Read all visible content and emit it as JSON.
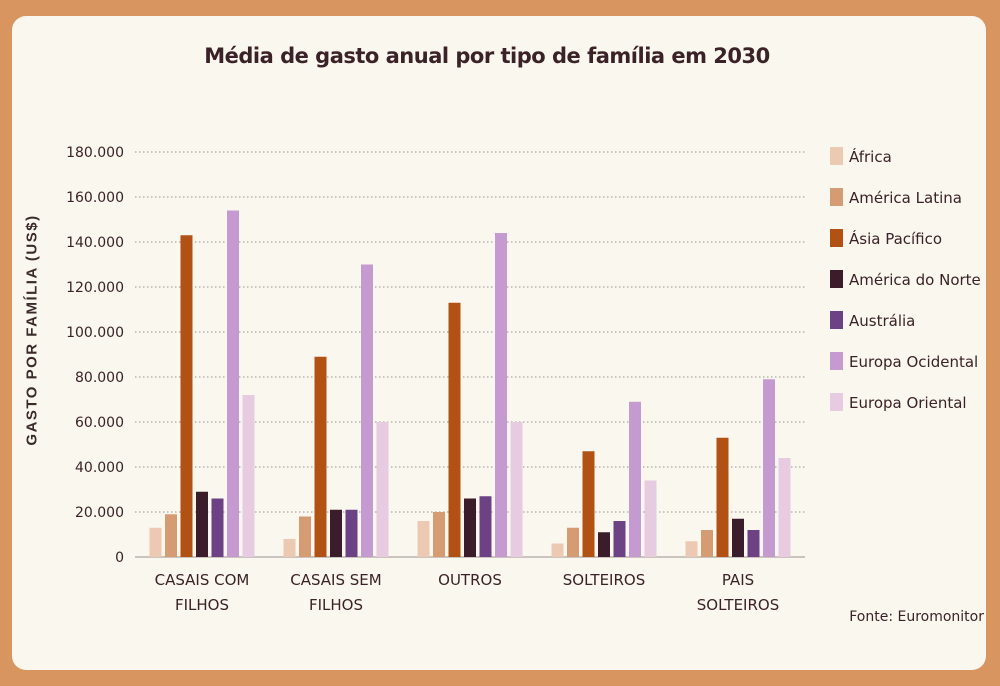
{
  "chart_data": {
    "type": "bar",
    "title": "Média de gasto anual por tipo de família em 2030",
    "ylabel": "GASTO POR FAMÍLIA (US$)",
    "xlabel": "",
    "ylim": [
      0,
      180000
    ],
    "yticks": [
      0,
      20000,
      40000,
      60000,
      80000,
      100000,
      120000,
      140000,
      160000,
      180000
    ],
    "ytick_labels": [
      "0",
      "20.000",
      "40.000",
      "60.000",
      "80.000",
      "100.000",
      "120.000",
      "140.000",
      "160.000",
      "180.000"
    ],
    "grid": true,
    "legend_position": "right",
    "categories": [
      [
        "CASAIS COM",
        "FILHOS"
      ],
      [
        "CASAIS SEM",
        "FILHOS"
      ],
      [
        "OUTROS"
      ],
      [
        "SOLTEIROS"
      ],
      [
        "PAIS",
        "SOLTEIROS"
      ]
    ],
    "series": [
      {
        "name": "África",
        "color": "#ecc9b2",
        "values": [
          13000,
          8000,
          16000,
          6000,
          7000
        ]
      },
      {
        "name": "América Latina",
        "color": "#d59c74",
        "values": [
          19000,
          18000,
          20000,
          13000,
          12000
        ]
      },
      {
        "name": "Ásia Pacífico",
        "color": "#b15114",
        "values": [
          143000,
          89000,
          113000,
          47000,
          53000
        ]
      },
      {
        "name": "América do Norte",
        "color": "#3a1c2b",
        "values": [
          29000,
          21000,
          26000,
          11000,
          17000
        ]
      },
      {
        "name": "Austrália",
        "color": "#6c4284",
        "values": [
          26000,
          21000,
          27000,
          16000,
          12000
        ]
      },
      {
        "name": "Europa Ocidental",
        "color": "#c59ad0",
        "values": [
          154000,
          130000,
          144000,
          69000,
          79000
        ]
      },
      {
        "name": "Europa Oriental",
        "color": "#e7cbe1",
        "values": [
          72000,
          60000,
          60000,
          34000,
          44000
        ]
      }
    ]
  },
  "source": "Fonte: Euromonitor"
}
